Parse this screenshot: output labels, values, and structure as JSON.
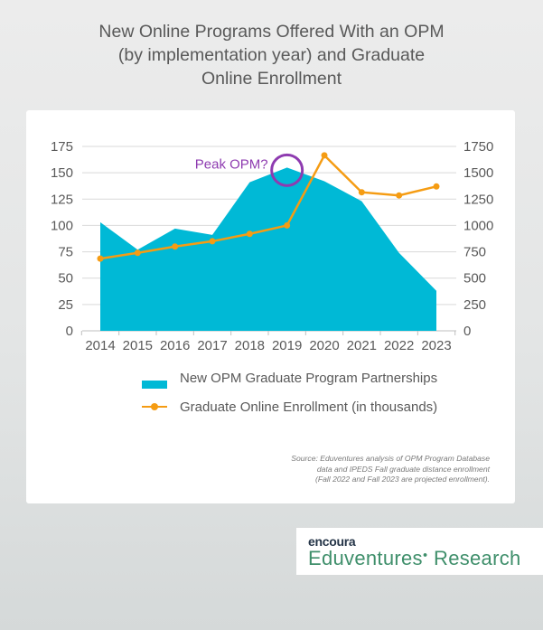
{
  "title_lines": [
    "New Online Programs Offered With an OPM",
    "(by implementation year) and Graduate",
    "Online Enrollment"
  ],
  "annotation": "Peak OPM?",
  "source_lines": [
    "Source: Eduventures analysis of OPM Program Database",
    "data and IPEDS Fall graduate distance enrollment",
    "(Fall 2022 and Fall 2023 are projected enrollment)."
  ],
  "brand": {
    "top": "encoura",
    "bottom": "Eduventures",
    "bottom_suffix": "Research"
  },
  "colors": {
    "area": "#00b9d6",
    "line": "#f59c13",
    "annotation": "#8e3bb0",
    "grid": "#d9d9d9",
    "text": "#595959"
  },
  "chart_data": {
    "type": "area",
    "categories": [
      "2014",
      "2015",
      "2016",
      "2017",
      "2018",
      "2019",
      "2020",
      "2021",
      "2022",
      "2023"
    ],
    "series": [
      {
        "name": "New OPM Graduate Program Partnerships",
        "type": "area",
        "axis": "left",
        "values": [
          103,
          77,
          97,
          91,
          141,
          155,
          142,
          123,
          74,
          38
        ]
      },
      {
        "name": "Graduate Online Enrollment (in thousands)",
        "type": "line",
        "axis": "right",
        "values": [
          685,
          740,
          800,
          850,
          920,
          1000,
          1665,
          1315,
          1285,
          1370
        ]
      }
    ],
    "y_left": {
      "min": 0,
      "max": 175,
      "ticks": [
        0,
        25,
        50,
        75,
        100,
        125,
        150,
        175
      ]
    },
    "y_right": {
      "min": 0,
      "max": 1750,
      "ticks": [
        0,
        250,
        500,
        750,
        1000,
        1250,
        1500,
        1750
      ]
    },
    "grid": true,
    "legend_position": "bottom",
    "annotation": {
      "text": "Peak OPM?",
      "category": "2019",
      "series": "New OPM Graduate Program Partnerships"
    }
  }
}
